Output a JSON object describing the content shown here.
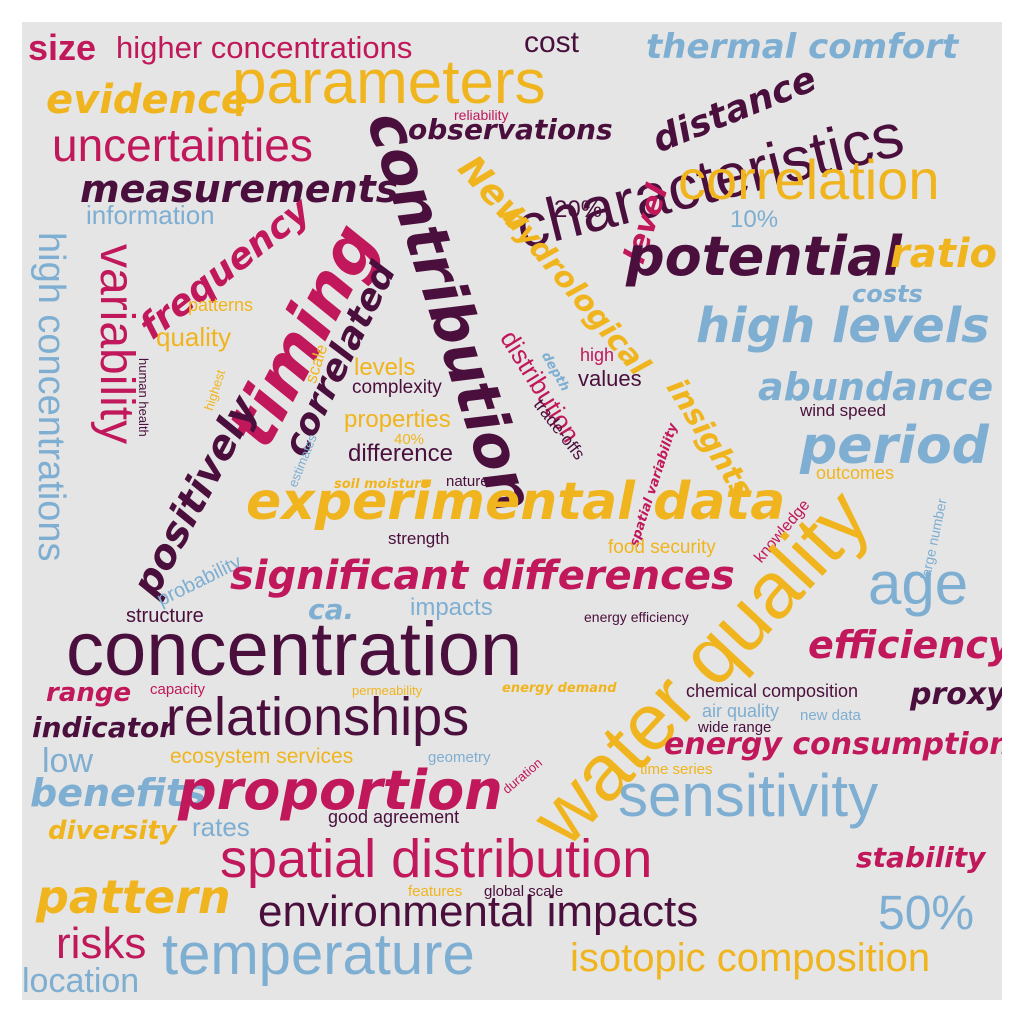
{
  "palette": {
    "crimson": "#c0185a",
    "gold": "#f0b51e",
    "plum": "#4a0f3c",
    "steel_blue": "#7eaed1",
    "background": "#e5e5e5"
  },
  "words": {
    "size": "size",
    "higher_concentrations": "higher concentrations",
    "cost": "cost",
    "thermal_comfort": "thermal comfort",
    "parameters": "parameters",
    "evidence": "evidence",
    "distance": "distance",
    "characteristics": "characteristics",
    "reliability": "reliability",
    "observations": "observations",
    "uncertainties": "uncertainties",
    "contribution": "contribution",
    "measurements": "measurements",
    "correlation": "correlation",
    "new": "New",
    "information": "information",
    "pct_20": "20%",
    "level": "level",
    "pct_10": "10%",
    "hydrological": "hydrological",
    "timing": "timing",
    "potential": "potential",
    "ratio": "ratio",
    "frequency": "frequency",
    "variability": "variability",
    "high_concentrations": "high concentrations",
    "costs": "costs",
    "patterns": "patterns",
    "high_levels": "high levels",
    "quality": "quality",
    "correlated": "correlated",
    "depth": "depth",
    "distribution": "distribution",
    "insights": "insights",
    "high": "high",
    "scale": "scale",
    "levels": "levels",
    "values": "values",
    "human_health": "human health",
    "complexity": "complexity",
    "abundance": "abundance",
    "wind_speed": "wind speed",
    "highest": "highest",
    "properties": "properties",
    "trade_offs": "trade-offs",
    "positively": "positively",
    "pct_40": "40%",
    "period": "period",
    "estimates": "estimates",
    "difference": "difference",
    "spatial_variability": "spatial variability",
    "outcomes": "outcomes",
    "soil_moisture": "soil moisture",
    "nature": "nature",
    "experimental_data": "experimental data",
    "knowledge": "knowledge",
    "large_number": "large number",
    "probability": "probability",
    "strength": "strength",
    "food_security": "food security",
    "significant_differences": "significant differences",
    "water_quality": "water quality",
    "age": "age",
    "structure": "structure",
    "ca": "ca.",
    "impacts": "impacts",
    "energy_efficiency": "energy efficiency",
    "concentration": "concentration",
    "efficiency": "efficiency",
    "range": "range",
    "capacity": "capacity",
    "permeability": "permeability",
    "energy_demand": "energy demand",
    "chemical_composition": "chemical composition",
    "proxy": "proxy",
    "indicator": "indicator",
    "relationships": "relationships",
    "air_quality": "air quality",
    "wide_range": "wide range",
    "new_data": "new data",
    "energy_consumption": "energy consumption",
    "low": "low",
    "ecosystem_services": "ecosystem services",
    "geometry": "geometry",
    "duration": "duration",
    "time_series": "time series",
    "benefits": "benefits",
    "proportion": "proportion",
    "sensitivity": "sensitivity",
    "rates": "rates",
    "good_agreement": "good agreement",
    "diversity": "diversity",
    "spatial_distribution": "spatial distribution",
    "stability": "stability",
    "pattern": "pattern",
    "features": "features",
    "global_scale": "global scale",
    "environmental_impacts": "environmental impacts",
    "pct_50": "50%",
    "risks": "risks",
    "temperature": "temperature",
    "isotopic_composition": "isotopic composition",
    "location": "location"
  }
}
